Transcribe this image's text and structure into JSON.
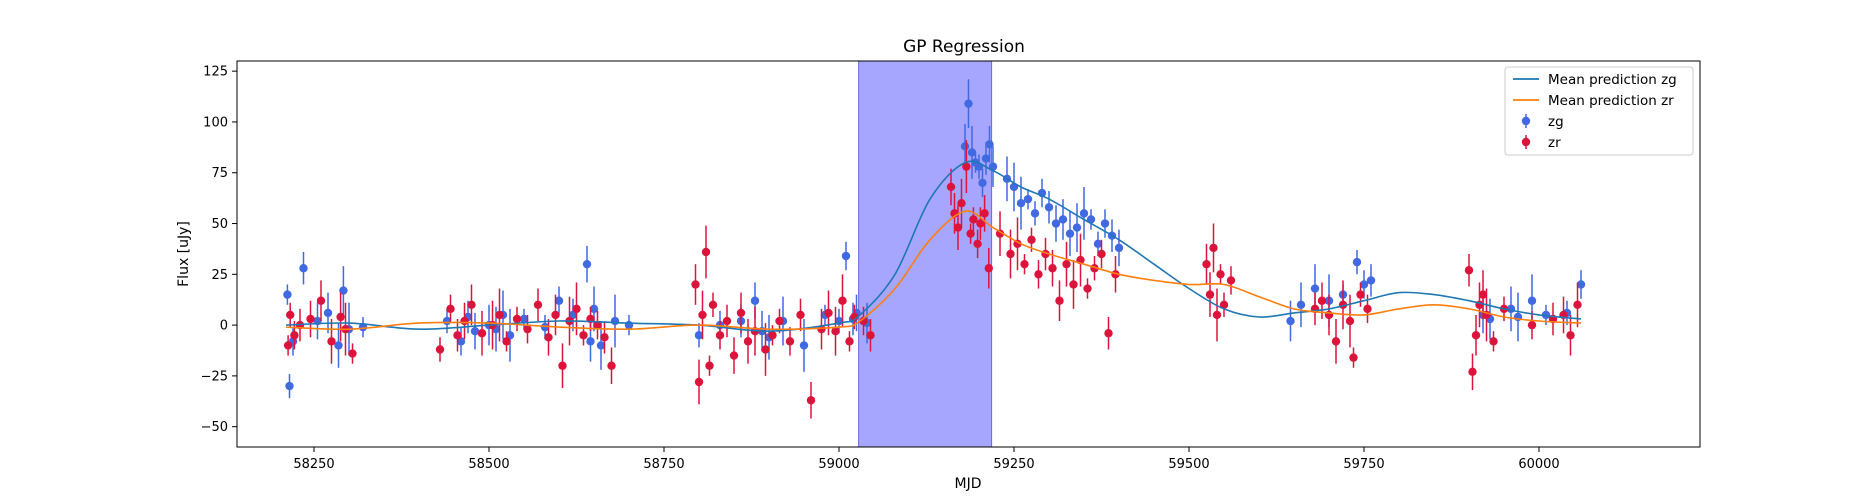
{
  "chart_data": {
    "type": "scatter",
    "title": "GP Regression",
    "xlabel": "MJD",
    "ylabel": "Flux [uJy]",
    "xlim": [
      58140,
      60230
    ],
    "ylim": [
      -60,
      130
    ],
    "xticks": [
      58250,
      58500,
      58750,
      59000,
      59250,
      59500,
      59750,
      60000
    ],
    "yticks": [
      -50,
      -25,
      0,
      25,
      50,
      75,
      100,
      125
    ],
    "grid": false,
    "legend_position": "top-right",
    "shaded_region": {
      "x_start": 59028,
      "x_end": 59218,
      "color": "#a6a6ff"
    },
    "legend": [
      {
        "label": "Mean prediction zg",
        "kind": "line",
        "color": "#1f77b4"
      },
      {
        "label": "Mean prediction zr",
        "kind": "line",
        "color": "#ff7f0e"
      },
      {
        "label": "zg",
        "kind": "errorbar",
        "color": "#4169e1"
      },
      {
        "label": "zr",
        "kind": "errorbar",
        "color": "#dc143c"
      }
    ],
    "series": [
      {
        "name": "Mean prediction zg",
        "kind": "line",
        "color": "#1f77b4",
        "x": [
          58210,
          58300,
          58400,
          58500,
          58600,
          58700,
          58800,
          58900,
          59000,
          59030,
          59080,
          59130,
          59180,
          59220,
          59260,
          59300,
          59350,
          59400,
          59450,
          59500,
          59550,
          59600,
          59650,
          59700,
          59750,
          59800,
          59850,
          59900,
          59950,
          60000,
          60060
        ],
        "y": [
          0,
          1,
          -2,
          0,
          2,
          1,
          0,
          -3,
          1,
          5,
          25,
          62,
          80,
          76,
          68,
          62,
          52,
          42,
          30,
          18,
          8,
          4,
          6,
          8,
          12,
          16,
          15,
          12,
          8,
          5,
          3
        ]
      },
      {
        "name": "Mean prediction zr",
        "kind": "line",
        "color": "#ff7f0e",
        "x": [
          58210,
          58300,
          58400,
          58500,
          58600,
          58700,
          58800,
          58900,
          59000,
          59030,
          59080,
          59130,
          59180,
          59220,
          59260,
          59300,
          59350,
          59400,
          59450,
          59500,
          59550,
          59600,
          59650,
          59700,
          59750,
          59800,
          59850,
          59900,
          59950,
          60000,
          60060
        ],
        "y": [
          -1,
          -2,
          1,
          1,
          -1,
          -2,
          0,
          -2,
          -1,
          2,
          18,
          42,
          56,
          48,
          40,
          35,
          30,
          25,
          22,
          20,
          20,
          14,
          8,
          6,
          5,
          8,
          10,
          8,
          4,
          2,
          1
        ]
      },
      {
        "name": "zg",
        "kind": "errorbar",
        "color": "#4169e1",
        "x": [
          58212,
          58215,
          58220,
          58235,
          58255,
          58270,
          58285,
          58292,
          58300,
          58320,
          58440,
          58460,
          58470,
          58480,
          58500,
          58510,
          58520,
          58530,
          58550,
          58580,
          58600,
          58620,
          58640,
          58645,
          58650,
          58660,
          58680,
          58700,
          58800,
          58830,
          58860,
          58880,
          58890,
          58900,
          58920,
          58950,
          58980,
          59000,
          59010,
          59020,
          59025,
          59040,
          59180,
          59185,
          59190,
          59195,
          59200,
          59205,
          59210,
          59215,
          59220,
          59240,
          59250,
          59260,
          59270,
          59280,
          59290,
          59300,
          59310,
          59320,
          59330,
          59340,
          59350,
          59360,
          59370,
          59380,
          59390,
          59400,
          59645,
          59660,
          59680,
          59700,
          59720,
          59740,
          59750,
          59760,
          59920,
          59930,
          59960,
          59970,
          59990,
          60010,
          60040,
          60060
        ],
        "y": [
          15,
          -30,
          -8,
          28,
          2,
          6,
          -10,
          17,
          -2,
          -1,
          2,
          -8,
          4,
          -3,
          0,
          -2,
          5,
          -5,
          3,
          -1,
          12,
          5,
          30,
          -8,
          8,
          -10,
          2,
          0,
          -5,
          0,
          2,
          12,
          -3,
          -6,
          2,
          -10,
          5,
          2,
          34,
          3,
          6,
          1,
          88,
          109,
          85,
          80,
          78,
          70,
          82,
          89,
          78,
          72,
          68,
          60,
          62,
          55,
          65,
          58,
          50,
          52,
          45,
          48,
          55,
          52,
          40,
          50,
          44,
          38,
          2,
          10,
          18,
          12,
          15,
          31,
          20,
          22,
          5,
          3,
          8,
          4,
          12,
          5,
          6,
          20
        ]
      },
      {
        "name": "zr",
        "kind": "errorbar",
        "color": "#dc143c",
        "x": [
          58213,
          58216,
          58222,
          58230,
          58245,
          58260,
          58275,
          58288,
          58295,
          58305,
          58430,
          58445,
          58455,
          58465,
          58475,
          58490,
          58505,
          58515,
          58525,
          58540,
          58555,
          58570,
          58585,
          58595,
          58605,
          58615,
          58625,
          58635,
          58645,
          58655,
          58665,
          58675,
          58795,
          58800,
          58805,
          58810,
          58815,
          58820,
          58830,
          58840,
          58850,
          58860,
          58870,
          58880,
          58895,
          58905,
          58915,
          58930,
          58945,
          58960,
          58975,
          58985,
          58995,
          59005,
          59015,
          59022,
          59035,
          59045,
          59160,
          59165,
          59170,
          59175,
          59182,
          59188,
          59192,
          59198,
          59202,
          59208,
          59214,
          59230,
          59245,
          59255,
          59265,
          59275,
          59285,
          59295,
          59305,
          59315,
          59325,
          59335,
          59345,
          59355,
          59365,
          59375,
          59385,
          59395,
          59525,
          59530,
          59535,
          59540,
          59545,
          59550,
          59560,
          59680,
          59690,
          59700,
          59710,
          59720,
          59730,
          59735,
          59745,
          59755,
          59900,
          59905,
          59910,
          59915,
          59920,
          59925,
          59935,
          59950,
          59990,
          60020,
          60035,
          60045,
          60055
        ],
        "y": [
          -10,
          5,
          -5,
          0,
          3,
          12,
          -8,
          4,
          -2,
          -14,
          -12,
          8,
          -5,
          2,
          10,
          -4,
          0,
          5,
          -8,
          3,
          -2,
          10,
          -6,
          5,
          -20,
          2,
          8,
          -5,
          3,
          0,
          -6,
          -20,
          20,
          -28,
          5,
          36,
          -20,
          10,
          -5,
          2,
          -15,
          6,
          -8,
          -3,
          -12,
          -5,
          2,
          -8,
          5,
          -37,
          -2,
          6,
          -3,
          12,
          -8,
          4,
          2,
          -5,
          68,
          55,
          48,
          60,
          78,
          45,
          52,
          40,
          50,
          55,
          28,
          45,
          35,
          40,
          30,
          42,
          25,
          35,
          28,
          12,
          30,
          20,
          32,
          18,
          28,
          35,
          -4,
          25,
          30,
          15,
          38,
          5,
          25,
          10,
          22,
          8,
          12,
          5,
          -8,
          10,
          2,
          -16,
          15,
          8,
          27,
          -23,
          -5,
          10,
          15,
          5,
          -8,
          8,
          0,
          3,
          5,
          -5,
          10
        ]
      }
    ]
  }
}
